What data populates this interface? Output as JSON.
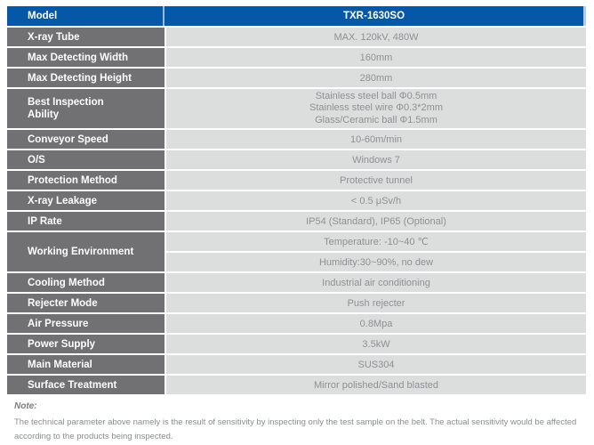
{
  "table": {
    "header": {
      "label": "Model",
      "value": "TXR-1630SO"
    },
    "rows": [
      {
        "label": "X-ray Tube",
        "value": "MAX. 120kV, 480W"
      },
      {
        "label": "Max Detecting Width",
        "value": "160mm"
      },
      {
        "label": "Max Detecting Height",
        "value": "280mm"
      },
      {
        "label": "Best Inspection Ability",
        "lines": [
          "Stainless steel ball Φ0.5mm",
          "Stainless steel wire Φ0.3*2mm",
          "Glass/Ceramic ball Φ1.5mm"
        ]
      },
      {
        "label": "Conveyor Speed",
        "value": "10-60m/min"
      },
      {
        "label": "O/S",
        "value": "Windows 7"
      },
      {
        "label": "Protection Method",
        "value": "Protective tunnel"
      },
      {
        "label": "X-ray Leakage",
        "value": "< 0.5 μSv/h"
      },
      {
        "label": "IP Rate",
        "value": "IP54 (Standard), IP65 (Optional)"
      },
      {
        "label": "Working Environment",
        "values": [
          "Temperature: -10~40 ℃",
          "Humidity:30~90%, no dew"
        ]
      },
      {
        "label": "Cooling Method",
        "value": "Industrial air conditioning"
      },
      {
        "label": "Rejecter Mode",
        "value": "Push rejecter"
      },
      {
        "label": "Air Pressure",
        "value": "0.8Mpa"
      },
      {
        "label": "Power Supply",
        "value": "3.5kW"
      },
      {
        "label": "Main Material",
        "value": "SUS304"
      },
      {
        "label": "Surface Treatment",
        "value": "Mirror polished/Sand blasted"
      }
    ]
  },
  "note": {
    "title": "Note:",
    "body": "The technical parameter above namely is the result of sensitivity by inspecting only the test sample on the belt. The actual sensitivity would be affected according to the products being inspected."
  },
  "colors": {
    "header_blue": "#0458a7",
    "label_gray": "#717173",
    "value_gray": "#dcdedd",
    "value_text": "#8d9193",
    "divider_white": "#ffffff",
    "header_divider_blue": "#9db9da"
  }
}
